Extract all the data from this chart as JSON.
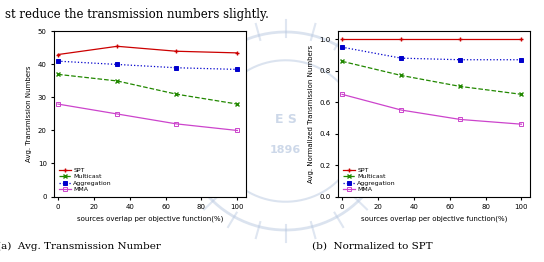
{
  "x": [
    0,
    33,
    66,
    100
  ],
  "left": {
    "SPT": [
      43,
      45.5,
      44,
      43.5
    ],
    "Multicast": [
      37,
      35,
      31,
      28
    ],
    "Aggregation": [
      41,
      40,
      39,
      38.5
    ],
    "MMA": [
      28,
      25,
      22,
      20
    ]
  },
  "right": {
    "SPT": [
      1.0,
      1.0,
      1.0,
      1.0
    ],
    "Multicast": [
      0.86,
      0.77,
      0.7,
      0.65
    ],
    "Aggregation": [
      0.95,
      0.88,
      0.87,
      0.87
    ],
    "MMA": [
      0.65,
      0.55,
      0.49,
      0.46
    ]
  },
  "left_ylabel": "Avg. Transmission Numbers",
  "right_ylabel": "Avg. Normalized Transmission Numbers",
  "xlabel": "sources overlap per objective function(%)",
  "left_ylim": [
    0,
    50
  ],
  "right_ylim": [
    0,
    1.05
  ],
  "left_yticks": [
    0,
    10,
    20,
    30,
    40,
    50
  ],
  "right_yticks": [
    0.0,
    0.2,
    0.4,
    0.6,
    0.8,
    1.0
  ],
  "xticks": [
    0,
    20,
    40,
    60,
    80,
    100
  ],
  "caption_left": "(a)  Avg. Transmission Number",
  "caption_right": "(b)  Normalized to SPT",
  "top_text": "st reduce the transmission numbers slightly.",
  "colors": {
    "SPT": "#cc0000",
    "Multicast": "#228800",
    "Aggregation": "#0000cc",
    "MMA": "#cc44cc"
  },
  "linestyles": {
    "SPT": "-",
    "Multicast": "--",
    "Aggregation": ":",
    "MMA": "-"
  },
  "markers": {
    "SPT": "+",
    "Multicast": "x",
    "Aggregation": "s",
    "MMA": "s"
  },
  "bg_color": "#e8eef5",
  "watermark_color": "#b8c8e0"
}
